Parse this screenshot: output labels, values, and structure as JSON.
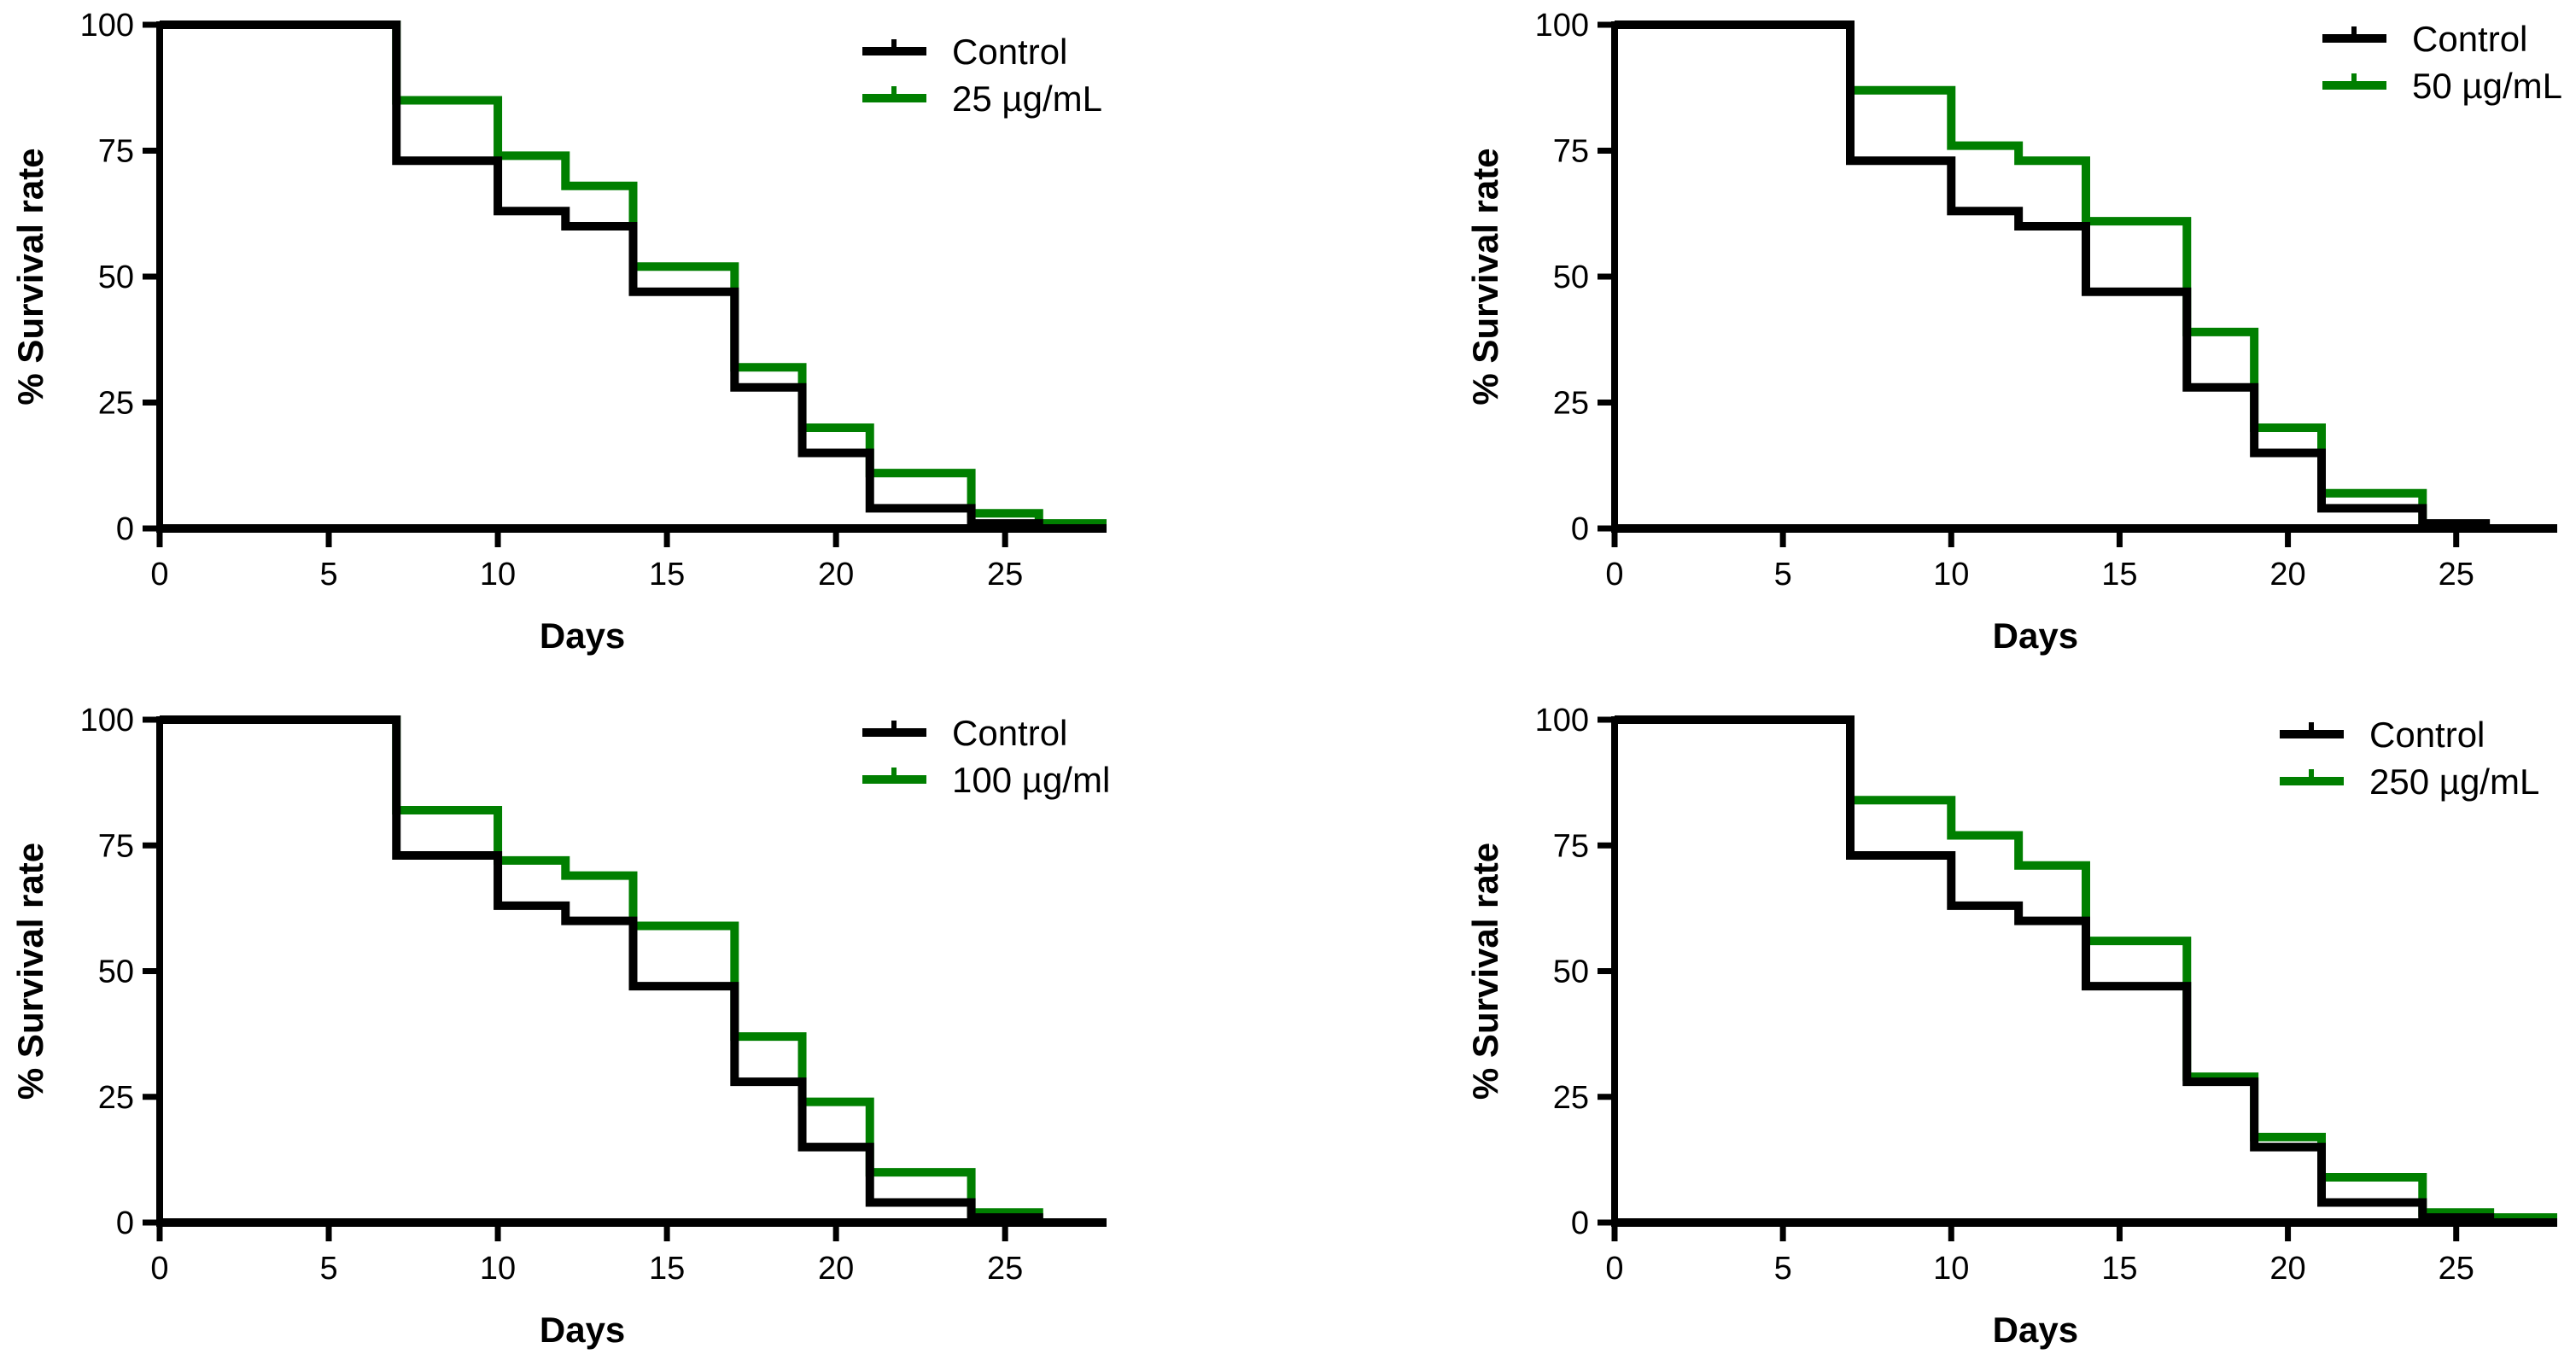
{
  "colors": {
    "control": "#000000",
    "treatment": "#007f00"
  },
  "chart_data": [
    {
      "type": "line",
      "step": true,
      "xlabel": "Days",
      "ylabel": "% Survival rate",
      "xlim": [
        0,
        28
      ],
      "ylim": [
        0,
        100
      ],
      "xticks": [
        "0",
        "5",
        "10",
        "15",
        "20",
        "25"
      ],
      "yticks": [
        "0",
        "25",
        "50",
        "75",
        "100"
      ],
      "legend_position": "top-right",
      "series": [
        {
          "name": "Control",
          "x": [
            0,
            7,
            10,
            12,
            14,
            17,
            19,
            21,
            24,
            26,
            28
          ],
          "y": [
            100,
            73,
            63,
            60,
            47,
            28,
            15,
            4,
            1,
            0,
            0
          ]
        },
        {
          "name": "25  µg/mL",
          "x": [
            0,
            7,
            10,
            12,
            14,
            17,
            19,
            21,
            24,
            26,
            28
          ],
          "y": [
            100,
            85,
            74,
            68,
            52,
            32,
            20,
            11,
            3,
            1,
            1
          ]
        }
      ]
    },
    {
      "type": "line",
      "step": true,
      "xlabel": "Days",
      "ylabel": "% Survival rate",
      "xlim": [
        0,
        28
      ],
      "ylim": [
        0,
        100
      ],
      "xticks": [
        "0",
        "5",
        "10",
        "15",
        "20",
        "25"
      ],
      "yticks": [
        "0",
        "25",
        "50",
        "75",
        "100"
      ],
      "legend_position": "top-right",
      "series": [
        {
          "name": "Control",
          "x": [
            0,
            7,
            10,
            12,
            14,
            17,
            19,
            21,
            24,
            26
          ],
          "y": [
            100,
            73,
            63,
            60,
            47,
            28,
            15,
            4,
            1,
            1
          ]
        },
        {
          "name": "50  µg/mL",
          "x": [
            0,
            7,
            10,
            12,
            14,
            17,
            19,
            21,
            24
          ],
          "y": [
            100,
            87,
            76,
            73,
            61,
            39,
            20,
            7,
            0
          ]
        }
      ]
    },
    {
      "type": "line",
      "step": true,
      "xlabel": "Days",
      "ylabel": "% Survival rate",
      "xlim": [
        0,
        28
      ],
      "ylim": [
        0,
        100
      ],
      "xticks": [
        "0",
        "5",
        "10",
        "15",
        "20",
        "25"
      ],
      "yticks": [
        "0",
        "25",
        "50",
        "75",
        "100"
      ],
      "legend_position": "top-right",
      "series": [
        {
          "name": "Control",
          "x": [
            0,
            7,
            10,
            12,
            14,
            17,
            19,
            21,
            24,
            26
          ],
          "y": [
            100,
            73,
            63,
            60,
            47,
            28,
            15,
            4,
            1,
            0
          ]
        },
        {
          "name": "100 µg/ml",
          "x": [
            0,
            7,
            10,
            12,
            14,
            17,
            19,
            21,
            24,
            26
          ],
          "y": [
            100,
            82,
            72,
            69,
            59,
            37,
            24,
            10,
            2,
            0
          ]
        }
      ]
    },
    {
      "type": "line",
      "step": true,
      "xlabel": "Days",
      "ylabel": "% Survival rate",
      "xlim": [
        0,
        28
      ],
      "ylim": [
        0,
        100
      ],
      "xticks": [
        "0",
        "5",
        "10",
        "15",
        "20",
        "25"
      ],
      "yticks": [
        "0",
        "25",
        "50",
        "75",
        "100"
      ],
      "legend_position": "top-right",
      "series": [
        {
          "name": "Control",
          "x": [
            0,
            7,
            10,
            12,
            14,
            17,
            19,
            21,
            24,
            26
          ],
          "y": [
            100,
            73,
            63,
            60,
            47,
            28,
            15,
            4,
            1,
            0
          ]
        },
        {
          "name": "250 µg/mL",
          "x": [
            0,
            7,
            10,
            12,
            14,
            17,
            19,
            21,
            24,
            26,
            28
          ],
          "y": [
            100,
            84,
            77,
            71,
            56,
            29,
            17,
            9,
            2,
            1,
            1
          ]
        }
      ]
    }
  ]
}
